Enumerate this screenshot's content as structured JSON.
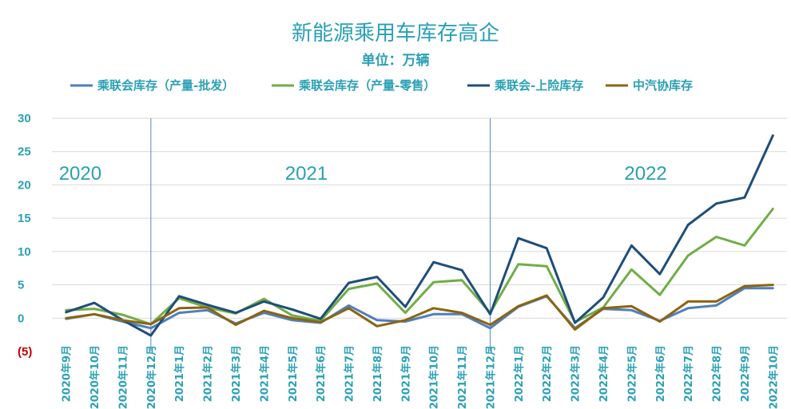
{
  "chart_data": {
    "type": "line",
    "title": "新能源乘用车库存高企",
    "subtitle": "单位：万辆",
    "categories": [
      "2020年9月",
      "2020年10月",
      "2020年11月",
      "2020年12月",
      "2021年1月",
      "2021年2月",
      "2021年3月",
      "2021年4月",
      "2021年5月",
      "2021年6月",
      "2021年7月",
      "2021年8月",
      "2021年9月",
      "2021年10月",
      "2021年11月",
      "2021年12月",
      "2022年1月",
      "2022年2月",
      "2022年3月",
      "2022年4月",
      "2022年5月",
      "2022年6月",
      "2022年7月",
      "2022年8月",
      "2022年9月",
      "2022年10月"
    ],
    "ylim": [
      -5,
      30
    ],
    "yticks": [
      {
        "value": 30,
        "label": "30"
      },
      {
        "value": 25,
        "label": "25"
      },
      {
        "value": 20,
        "label": "20"
      },
      {
        "value": 15,
        "label": "15"
      },
      {
        "value": 10,
        "label": "10"
      },
      {
        "value": 5,
        "label": "5"
      },
      {
        "value": 0,
        "label": "0"
      },
      {
        "value": -5,
        "label": "(5)"
      }
    ],
    "grid": true,
    "legend_position": "top",
    "year_labels": [
      {
        "text": "2020",
        "at_category": 0.5
      },
      {
        "text": "2021",
        "at_category": 8.5
      },
      {
        "text": "2022",
        "at_category": 20.5
      }
    ],
    "dividers_after_category": [
      3,
      15
    ],
    "series": [
      {
        "name": "乘联会库存（产量-批发）",
        "color": "#4f7fbd",
        "values": [
          -0.1,
          0.6,
          -0.5,
          -1.5,
          0.8,
          1.2,
          -0.8,
          0.8,
          -0.3,
          -0.7,
          1.9,
          -0.3,
          -0.5,
          0.6,
          0.6,
          -1.5,
          1.7,
          3.3,
          -1.5,
          1.4,
          1.2,
          -0.4,
          1.5,
          1.9,
          4.5,
          4.5
        ]
      },
      {
        "name": "乘联会库存（产量-零售）",
        "color": "#70ad47",
        "values": [
          1.2,
          1.4,
          0.5,
          -0.9,
          3.0,
          1.6,
          0.7,
          2.9,
          0.4,
          -0.4,
          4.4,
          5.2,
          0.8,
          5.4,
          5.7,
          0.8,
          8.1,
          7.8,
          -0.6,
          1.6,
          7.3,
          3.5,
          9.4,
          12.2,
          10.9,
          16.4
        ]
      },
      {
        "name": "乘联会-上险库存",
        "color": "#1f4e79",
        "values": [
          0.9,
          2.3,
          -0.3,
          -2.6,
          3.3,
          2.0,
          0.8,
          2.5,
          1.3,
          -0.1,
          5.3,
          6.2,
          1.7,
          8.4,
          7.2,
          0.6,
          12.0,
          10.5,
          -0.7,
          3.1,
          10.9,
          6.6,
          14.0,
          17.2,
          18.1,
          27.4
        ]
      },
      {
        "name": "中汽协库存",
        "color": "#8c6410",
        "values": [
          0.0,
          0.6,
          -0.3,
          -0.9,
          1.5,
          1.6,
          -1.0,
          1.1,
          0.0,
          -0.6,
          1.5,
          -1.2,
          -0.3,
          1.5,
          0.8,
          -1.0,
          1.8,
          3.4,
          -1.7,
          1.5,
          1.8,
          -0.5,
          2.5,
          2.5,
          4.8,
          5.0
        ]
      }
    ]
  }
}
